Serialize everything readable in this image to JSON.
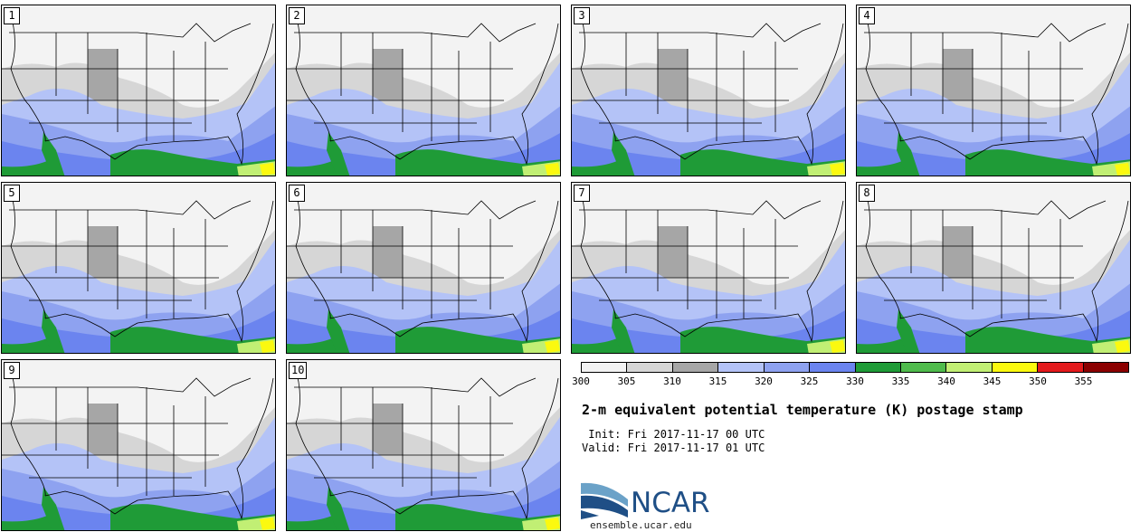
{
  "panels": [
    {
      "label": "1"
    },
    {
      "label": "2"
    },
    {
      "label": "3"
    },
    {
      "label": "4"
    },
    {
      "label": "5"
    },
    {
      "label": "6"
    },
    {
      "label": "7"
    },
    {
      "label": "8"
    },
    {
      "label": "9"
    },
    {
      "label": "10"
    }
  ],
  "colorbar": {
    "bins": [
      300,
      305,
      310,
      315,
      320,
      325,
      330,
      335,
      340,
      345,
      350,
      355,
      360
    ],
    "tick_labels": [
      "300",
      "305",
      "310",
      "315",
      "320",
      "325",
      "330",
      "335",
      "340",
      "345",
      "350",
      "355"
    ],
    "colors": [
      "#f2f2f2",
      "#d6d6d6",
      "#a6a6a6",
      "#b4c3f7",
      "#8ea2f0",
      "#6b84ef",
      "#1f9b37",
      "#4fbb4c",
      "#c1ef74",
      "#fbf90f",
      "#e31a1c",
      "#8b0000"
    ]
  },
  "title": "2-m equivalent potential temperature (K) postage stamp",
  "init": " Init: Fri 2017-11-17 00 UTC",
  "valid": "Valid: Fri 2017-11-17 01 UTC",
  "logo": {
    "text": "NCAR",
    "color": "#1f4f86",
    "site": "ensemble.ucar.edu"
  }
}
